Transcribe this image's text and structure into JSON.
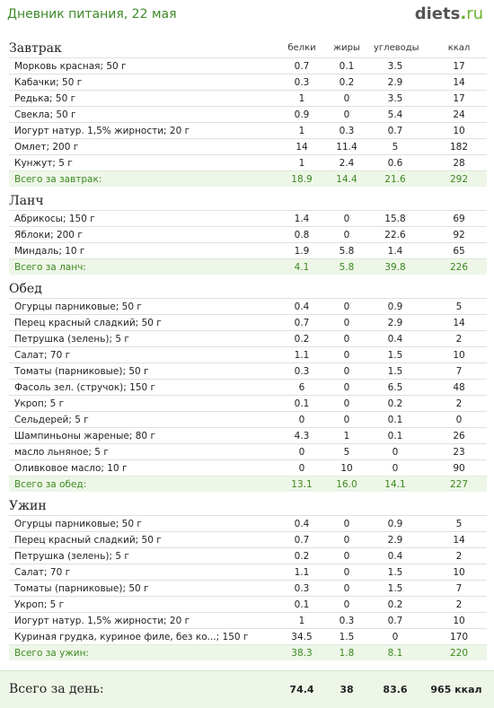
{
  "title": "Дневник питания, 22 мая",
  "logo": {
    "main": "diets",
    "dot": ".",
    "tld": "ru"
  },
  "columns": [
    "белки",
    "жиры",
    "углеводы",
    "ккал"
  ],
  "sections": [
    {
      "title": "Завтрак",
      "rows": [
        {
          "name": "Морковь красная; 50 г",
          "p": "0.7",
          "f": "0.1",
          "c": "3.5",
          "k": "17"
        },
        {
          "name": "Кабачки; 50 г",
          "p": "0.3",
          "f": "0.2",
          "c": "2.9",
          "k": "14"
        },
        {
          "name": "Редька; 50 г",
          "p": "1",
          "f": "0",
          "c": "3.5",
          "k": "17"
        },
        {
          "name": "Свекла; 50 г",
          "p": "0.9",
          "f": "0",
          "c": "5.4",
          "k": "24"
        },
        {
          "name": "Йогурт натур. 1,5% жирности; 20 г",
          "p": "1",
          "f": "0.3",
          "c": "0.7",
          "k": "10"
        },
        {
          "name": "Омлет; 200 г",
          "p": "14",
          "f": "11.4",
          "c": "5",
          "k": "182"
        },
        {
          "name": "Кунжут; 5 г",
          "p": "1",
          "f": "2.4",
          "c": "0.6",
          "k": "28"
        }
      ],
      "total": {
        "name": "Всего за завтрак:",
        "p": "18.9",
        "f": "14.4",
        "c": "21.6",
        "k": "292"
      }
    },
    {
      "title": "Ланч",
      "rows": [
        {
          "name": "Абрикосы; 150 г",
          "p": "1.4",
          "f": "0",
          "c": "15.8",
          "k": "69"
        },
        {
          "name": "Яблоки; 200 г",
          "p": "0.8",
          "f": "0",
          "c": "22.6",
          "k": "92"
        },
        {
          "name": "Миндаль; 10 г",
          "p": "1.9",
          "f": "5.8",
          "c": "1.4",
          "k": "65"
        }
      ],
      "total": {
        "name": "Всего за ланч:",
        "p": "4.1",
        "f": "5.8",
        "c": "39.8",
        "k": "226"
      }
    },
    {
      "title": "Обед",
      "rows": [
        {
          "name": "Огурцы парниковые; 50 г",
          "p": "0.4",
          "f": "0",
          "c": "0.9",
          "k": "5"
        },
        {
          "name": "Перец красный сладкий; 50 г",
          "p": "0.7",
          "f": "0",
          "c": "2.9",
          "k": "14"
        },
        {
          "name": "Петрушка (зелень); 5 г",
          "p": "0.2",
          "f": "0",
          "c": "0.4",
          "k": "2"
        },
        {
          "name": "Салат; 70 г",
          "p": "1.1",
          "f": "0",
          "c": "1.5",
          "k": "10"
        },
        {
          "name": "Томаты (парниковые); 50 г",
          "p": "0.3",
          "f": "0",
          "c": "1.5",
          "k": "7"
        },
        {
          "name": "Фасоль зел. (стручок); 150 г",
          "p": "6",
          "f": "0",
          "c": "6.5",
          "k": "48"
        },
        {
          "name": "Укроп; 5 г",
          "p": "0.1",
          "f": "0",
          "c": "0.2",
          "k": "2"
        },
        {
          "name": "Сельдерей; 5 г",
          "p": "0",
          "f": "0",
          "c": "0.1",
          "k": "0"
        },
        {
          "name": "Шампиньоны жареные; 80 г",
          "p": "4.3",
          "f": "1",
          "c": "0.1",
          "k": "26"
        },
        {
          "name": "масло льняное; 5 г",
          "p": "0",
          "f": "5",
          "c": "0",
          "k": "23"
        },
        {
          "name": "Оливковое масло; 10 г",
          "p": "0",
          "f": "10",
          "c": "0",
          "k": "90"
        }
      ],
      "total": {
        "name": "Всего за обед:",
        "p": "13.1",
        "f": "16.0",
        "c": "14.1",
        "k": "227"
      }
    },
    {
      "title": "Ужин",
      "rows": [
        {
          "name": "Огурцы парниковые; 50 г",
          "p": "0.4",
          "f": "0",
          "c": "0.9",
          "k": "5"
        },
        {
          "name": "Перец красный сладкий; 50 г",
          "p": "0.7",
          "f": "0",
          "c": "2.9",
          "k": "14"
        },
        {
          "name": "Петрушка (зелень); 5 г",
          "p": "0.2",
          "f": "0",
          "c": "0.4",
          "k": "2"
        },
        {
          "name": "Салат; 70 г",
          "p": "1.1",
          "f": "0",
          "c": "1.5",
          "k": "10"
        },
        {
          "name": "Томаты (парниковые); 50 г",
          "p": "0.3",
          "f": "0",
          "c": "1.5",
          "k": "7"
        },
        {
          "name": "Укроп; 5 г",
          "p": "0.1",
          "f": "0",
          "c": "0.2",
          "k": "2"
        },
        {
          "name": "Йогурт натур. 1,5% жирности; 20 г",
          "p": "1",
          "f": "0.3",
          "c": "0.7",
          "k": "10"
        },
        {
          "name": "Куриная грудка, куриное филе, без ко...; 150 г",
          "p": "34.5",
          "f": "1.5",
          "c": "0",
          "k": "170"
        }
      ],
      "total": {
        "name": "Всего за ужин:",
        "p": "38.3",
        "f": "1.8",
        "c": "8.1",
        "k": "220"
      }
    }
  ],
  "day_total": {
    "label": "Всего за день:",
    "p": "74.4",
    "f": "38",
    "c": "83.6",
    "k": "965 ккал"
  }
}
